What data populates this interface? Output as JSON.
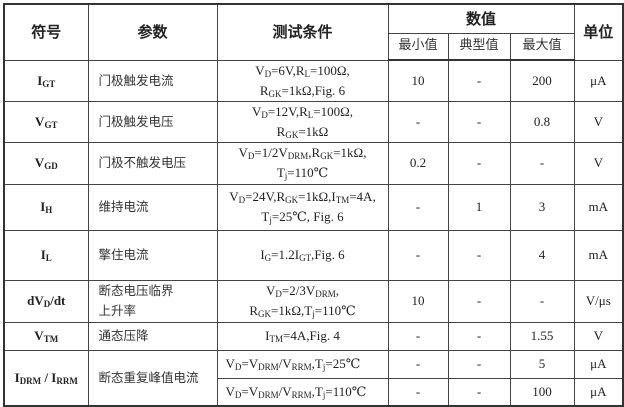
{
  "header": {
    "symbol": "符号",
    "parameter": "参数",
    "conditions": "测试条件",
    "values": "数值",
    "unit": "单位",
    "min": "最小值",
    "typ": "典型值",
    "max": "最大值"
  },
  "rows": [
    {
      "symbol": [
        {
          "t": "I"
        },
        {
          "t": "GT",
          "sub": true
        }
      ],
      "parameter": [
        "门极触发电流"
      ],
      "conditions": [
        [
          {
            "t": "V"
          },
          {
            "t": "D",
            "sub": true
          },
          {
            "t": "=6V,R"
          },
          {
            "t": "L",
            "sub": true
          },
          {
            "t": "=100Ω,"
          }
        ],
        [
          {
            "t": "R"
          },
          {
            "t": "GK",
            "sub": true
          },
          {
            "t": "=1kΩ,Fig. 6"
          }
        ]
      ],
      "min": "10",
      "typ": "-",
      "max": "200",
      "unit": "μA"
    },
    {
      "symbol": [
        {
          "t": "V"
        },
        {
          "t": "GT",
          "sub": true
        }
      ],
      "parameter": [
        "门极触发电压"
      ],
      "conditions": [
        [
          {
            "t": "V"
          },
          {
            "t": "D",
            "sub": true
          },
          {
            "t": "=12V,R"
          },
          {
            "t": "L",
            "sub": true
          },
          {
            "t": "=100Ω,"
          }
        ],
        [
          {
            "t": "R"
          },
          {
            "t": "GK",
            "sub": true
          },
          {
            "t": "=1kΩ"
          }
        ]
      ],
      "min": "-",
      "typ": "-",
      "max": "0.8",
      "unit": "V"
    },
    {
      "symbol": [
        {
          "t": "V"
        },
        {
          "t": "GD",
          "sub": true
        }
      ],
      "parameter": [
        "门极不触发电压"
      ],
      "conditions": [
        [
          {
            "t": "V"
          },
          {
            "t": "D",
            "sub": true
          },
          {
            "t": "=1/2V"
          },
          {
            "t": "DRM",
            "sub": true
          },
          {
            "t": ",R"
          },
          {
            "t": "GK",
            "sub": true
          },
          {
            "t": "=1kΩ,"
          }
        ],
        [
          {
            "t": "T"
          },
          {
            "t": "j",
            "sub": true
          },
          {
            "t": "=110℃"
          }
        ]
      ],
      "min": "0.2",
      "typ": "-",
      "max": "-",
      "unit": "V"
    },
    {
      "symbol": [
        {
          "t": "I"
        },
        {
          "t": "H",
          "sub": true
        }
      ],
      "parameter": [
        "维持电流"
      ],
      "conditions": [
        [
          {
            "t": "V"
          },
          {
            "t": "D",
            "sub": true
          },
          {
            "t": "=24V,R"
          },
          {
            "t": "GK",
            "sub": true
          },
          {
            "t": "=1kΩ,I"
          },
          {
            "t": "TM",
            "sub": true
          },
          {
            "t": "=4A,"
          }
        ],
        [
          {
            "t": "T"
          },
          {
            "t": "j",
            "sub": true
          },
          {
            "t": "=25℃, Fig. 6"
          }
        ]
      ],
      "min": "-",
      "typ": "1",
      "max": "3",
      "unit": "mA"
    },
    {
      "symbol": [
        {
          "t": "I"
        },
        {
          "t": "L",
          "sub": true
        }
      ],
      "parameter": [
        "擎住电流"
      ],
      "conditions": [
        [
          {
            "t": "I"
          },
          {
            "t": "G",
            "sub": true
          },
          {
            "t": "=1.2I"
          },
          {
            "t": "GT",
            "sub": true
          },
          {
            "t": ",Fig. 6"
          }
        ]
      ],
      "min": "-",
      "typ": "-",
      "max": "4",
      "unit": "mA"
    },
    {
      "symbol": [
        {
          "t": "dV"
        },
        {
          "t": "D",
          "sub": true
        },
        {
          "t": "/dt"
        }
      ],
      "parameter": [
        "断态电压临界",
        "上升率"
      ],
      "conditions": [
        [
          {
            "t": "V"
          },
          {
            "t": "D",
            "sub": true
          },
          {
            "t": "=2/3V"
          },
          {
            "t": "DRM",
            "sub": true
          },
          {
            "t": ","
          }
        ],
        [
          {
            "t": "R"
          },
          {
            "t": "GK",
            "sub": true
          },
          {
            "t": "=1kΩ,T"
          },
          {
            "t": "j",
            "sub": true
          },
          {
            "t": "=110℃"
          }
        ]
      ],
      "min": "10",
      "typ": "-",
      "max": "-",
      "unit": "V/μs"
    },
    {
      "symbol": [
        {
          "t": "V"
        },
        {
          "t": "TM",
          "sub": true
        }
      ],
      "parameter": [
        "通态压降"
      ],
      "conditions": [
        [
          {
            "t": "I"
          },
          {
            "t": "TM",
            "sub": true
          },
          {
            "t": "=4A,Fig. 4"
          }
        ]
      ],
      "min": "-",
      "typ": "-",
      "max": "1.55",
      "unit": "V"
    }
  ],
  "idrm": {
    "symbol": [
      {
        "t": "I"
      },
      {
        "t": "DRM",
        "sub": true
      },
      {
        "t": " / I"
      },
      {
        "t": "RRM",
        "sub": true
      }
    ],
    "parameter": "断态重复峰值电流",
    "subrows": [
      {
        "conditions": [
          {
            "t": "V"
          },
          {
            "t": "D",
            "sub": true
          },
          {
            "t": "=V"
          },
          {
            "t": "DRM",
            "sub": true
          },
          {
            "t": "/V"
          },
          {
            "t": "RRM",
            "sub": true
          },
          {
            "t": ",T"
          },
          {
            "t": "j",
            "sub": true
          },
          {
            "t": "=25℃"
          }
        ],
        "min": "-",
        "typ": "-",
        "max": "5",
        "unit": "μA"
      },
      {
        "conditions": [
          {
            "t": "V"
          },
          {
            "t": "D",
            "sub": true
          },
          {
            "t": "=V"
          },
          {
            "t": "DRM",
            "sub": true
          },
          {
            "t": "/V"
          },
          {
            "t": "RRM",
            "sub": true
          },
          {
            "t": ",T"
          },
          {
            "t": "j",
            "sub": true
          },
          {
            "t": "=110℃"
          }
        ],
        "min": "-",
        "typ": "-",
        "max": "100",
        "unit": "μA"
      }
    ]
  }
}
